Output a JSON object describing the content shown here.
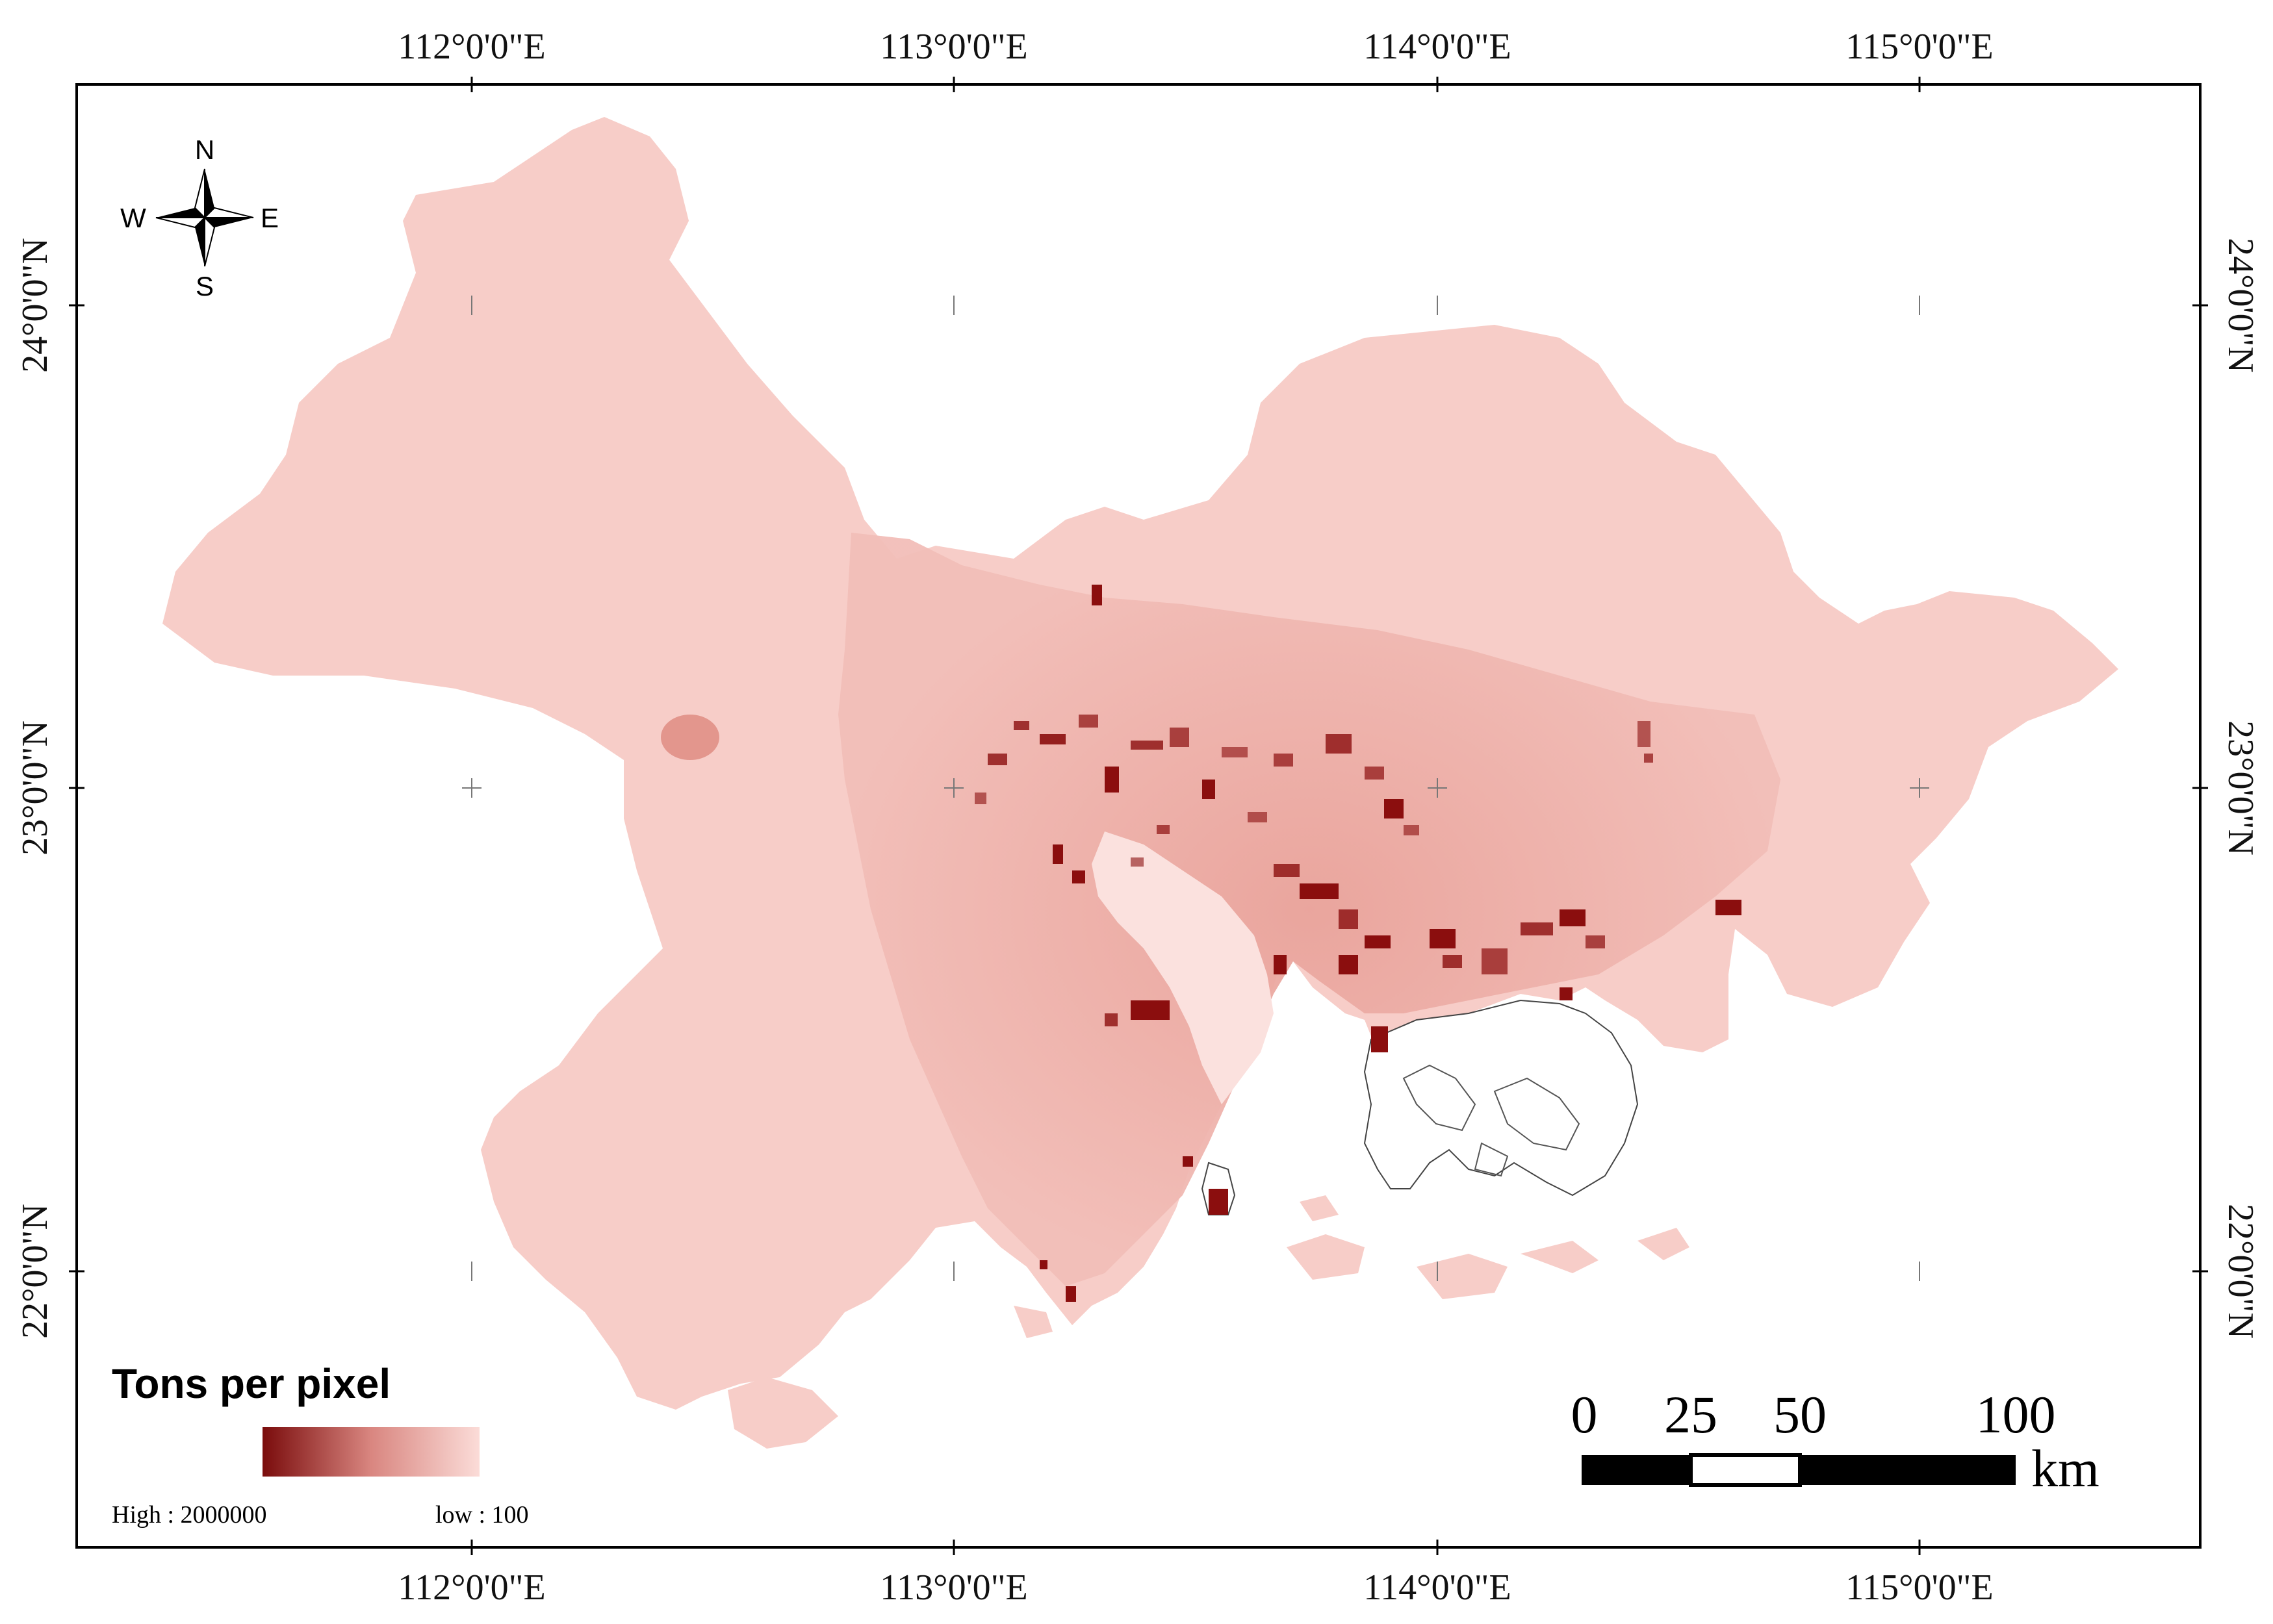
{
  "map": {
    "longitude_labels": [
      "112°0'0\"E",
      "113°0'0\"E",
      "114°0'0\"E",
      "115°0'0\"E"
    ],
    "latitude_labels": [
      "24°0'0\"N",
      "23°0'0\"N",
      "22°0'0\"N"
    ]
  },
  "compass": {
    "north": "N",
    "south": "S",
    "east": "E",
    "west": "W"
  },
  "legend": {
    "title": "Tons per pixel",
    "high_label": "High : 2000000",
    "low_label": "low : 100",
    "color_high": "#7a0c0c",
    "color_low": "#fbdcd8"
  },
  "scale_bar": {
    "ticks": [
      "0",
      "25",
      "50",
      "100"
    ],
    "unit": "km"
  },
  "colors": {
    "region_fill": "#f7cdc8",
    "core_fill": "#efb4ad",
    "hotspot": "#8b0e0e",
    "frame": "#000000"
  }
}
